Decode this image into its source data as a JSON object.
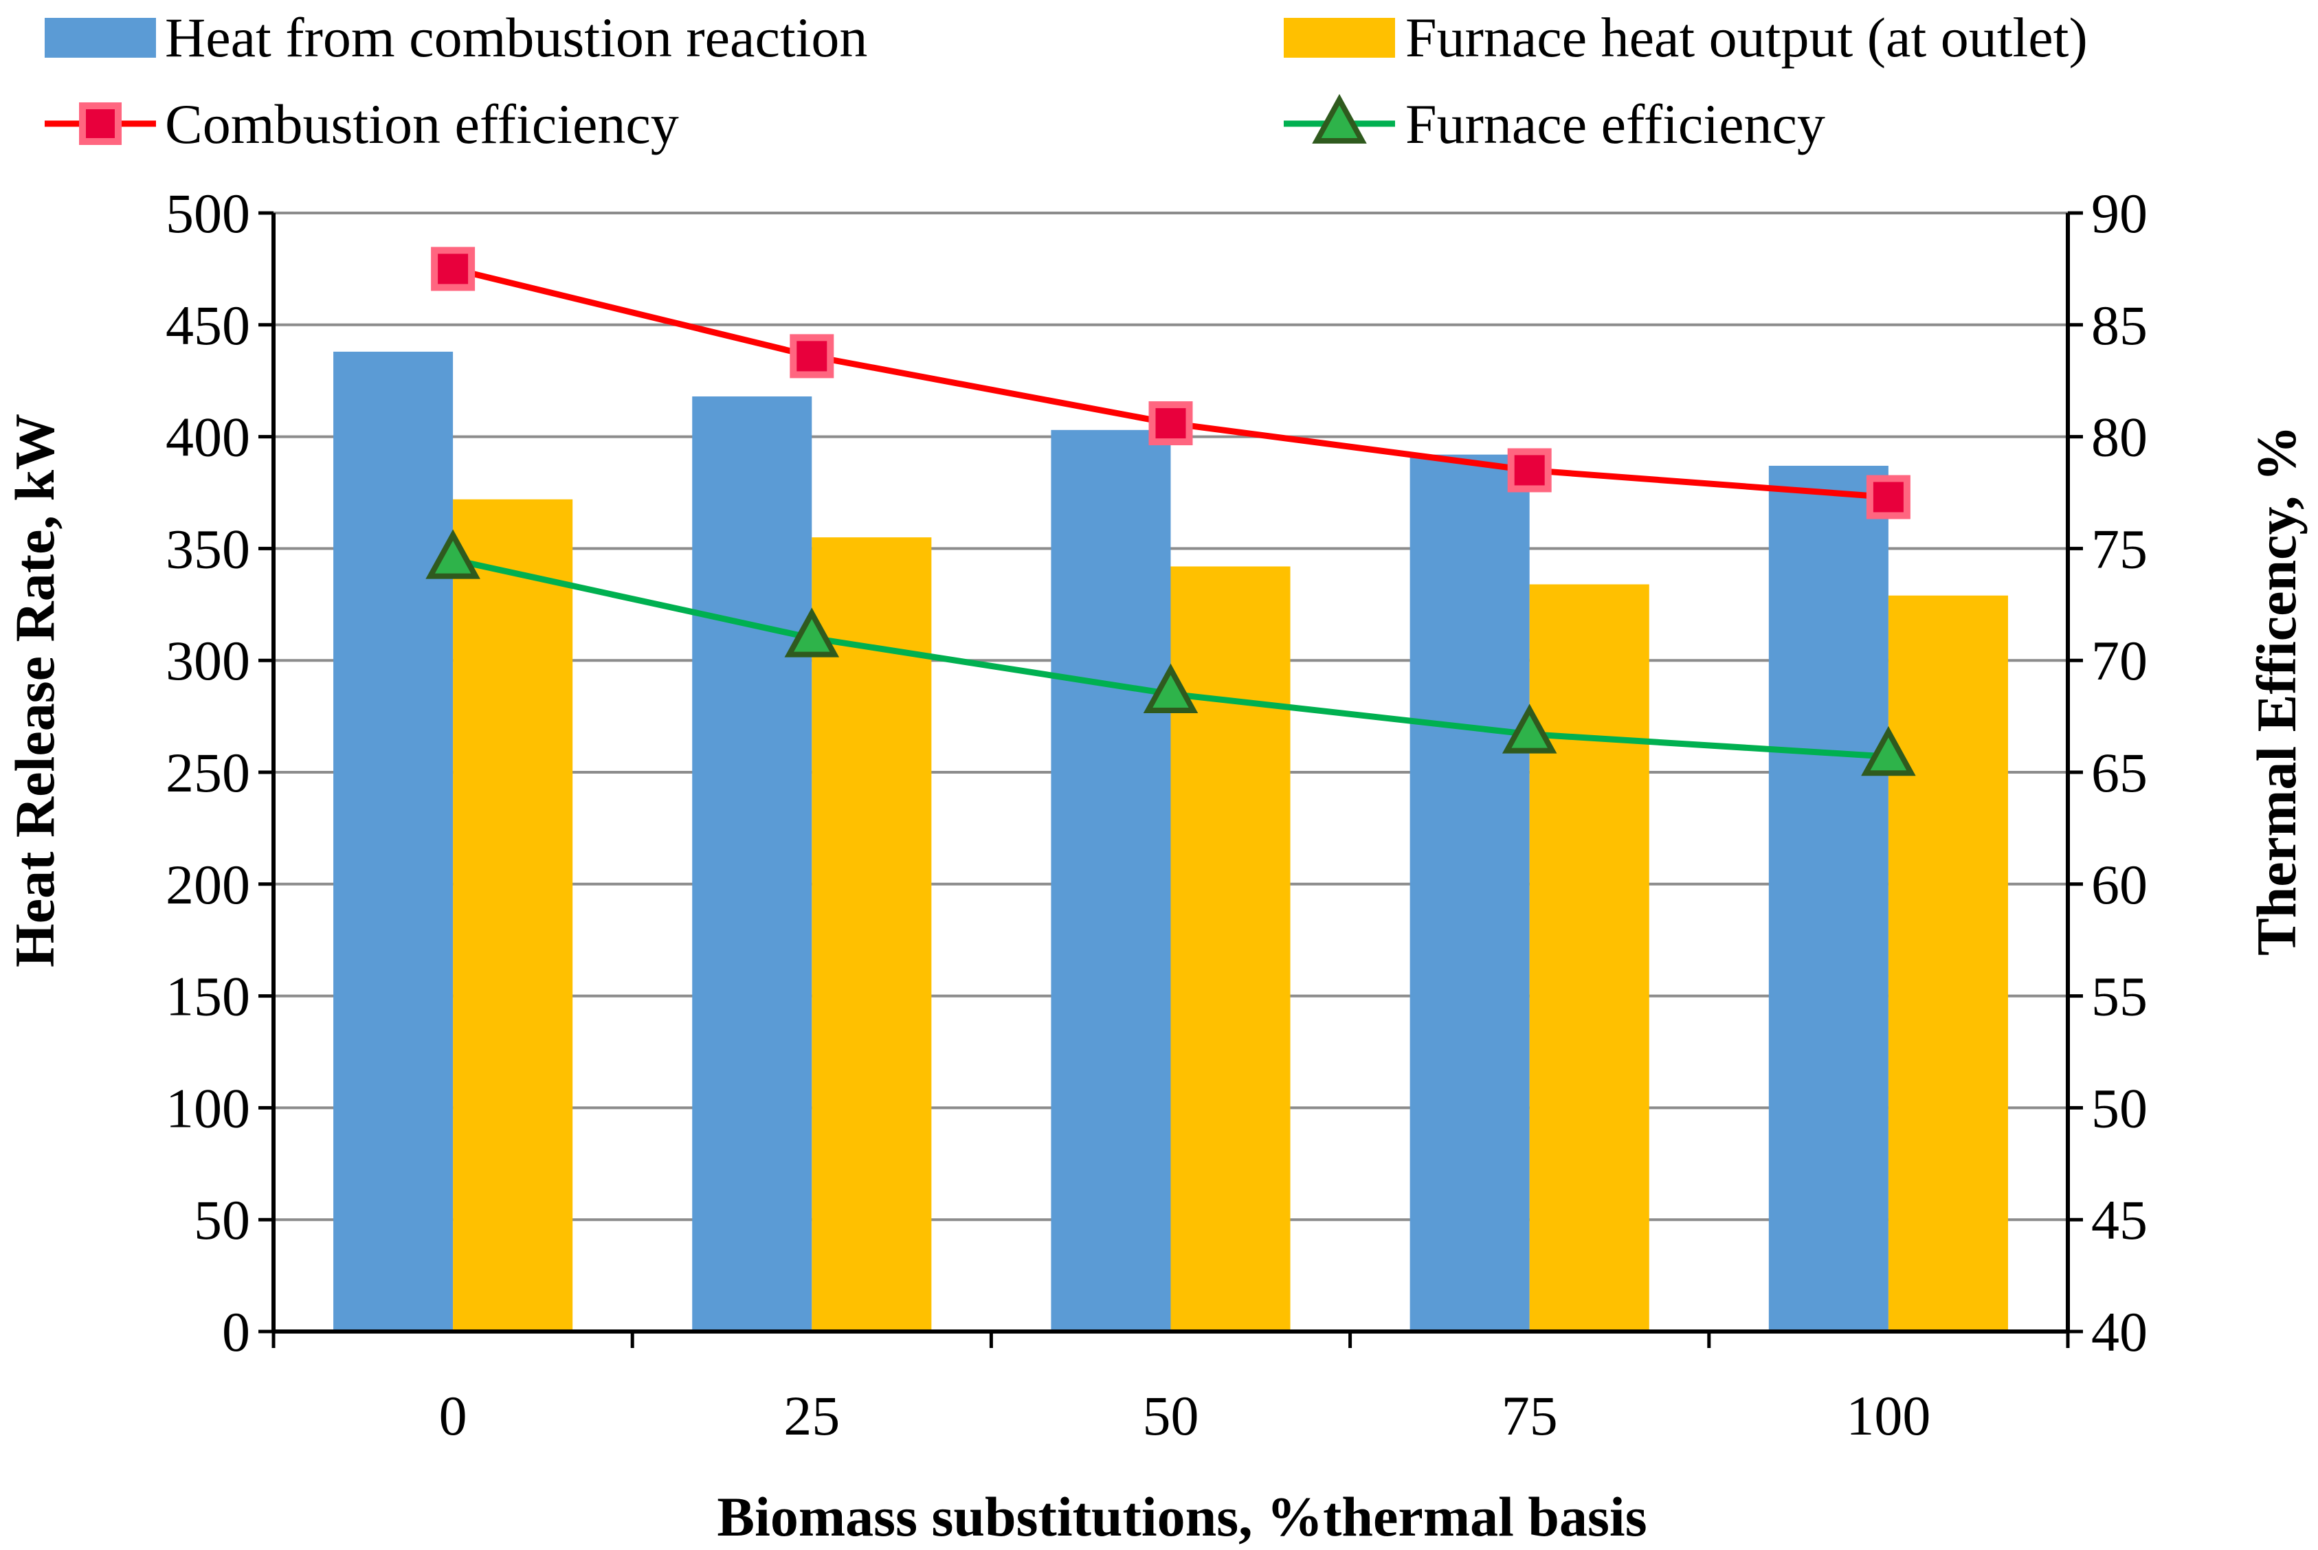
{
  "chart_data": {
    "type": "bar",
    "title": "",
    "xlabel": "Biomass substitutions, %thermal basis",
    "ylabel": "Heat Release Rate, kW",
    "y2label": "Thermal Efficency, %",
    "categories": [
      "0",
      "25",
      "50",
      "75",
      "100"
    ],
    "ylim": [
      0,
      500
    ],
    "y2lim": [
      40,
      90
    ],
    "yticks": [
      "0",
      "50",
      "100",
      "150",
      "200",
      "250",
      "300",
      "350",
      "400",
      "450",
      "500"
    ],
    "y2ticks": [
      "40",
      "45",
      "50",
      "55",
      "60",
      "65",
      "70",
      "75",
      "80",
      "85",
      "90"
    ],
    "grid": "horizontal",
    "legend_position": "top",
    "series": [
      {
        "name": "Heat from combustion reaction",
        "kind": "bar",
        "axis": "left",
        "color": "#5B9BD5",
        "values": [
          438,
          418,
          403,
          392,
          387
        ]
      },
      {
        "name": "Furnace heat output (at outlet)",
        "kind": "bar",
        "axis": "left",
        "color": "#FFC000",
        "values": [
          372,
          355,
          342,
          334,
          329
        ]
      },
      {
        "name": "Combustion efficiency",
        "kind": "line",
        "axis": "right",
        "color": "#FF0000",
        "marker": "square",
        "marker_fill": "#E8003C",
        "marker_edge": "#FF6680",
        "values": [
          87.5,
          83.6,
          80.6,
          78.5,
          77.3
        ]
      },
      {
        "name": "Furnace efficiency",
        "kind": "line",
        "axis": "right",
        "color": "#00B050",
        "marker": "triangle",
        "marker_fill": "#2EB34A",
        "marker_edge": "#2F5A1E",
        "values": [
          74.5,
          71.0,
          68.5,
          66.7,
          65.7
        ]
      }
    ]
  }
}
